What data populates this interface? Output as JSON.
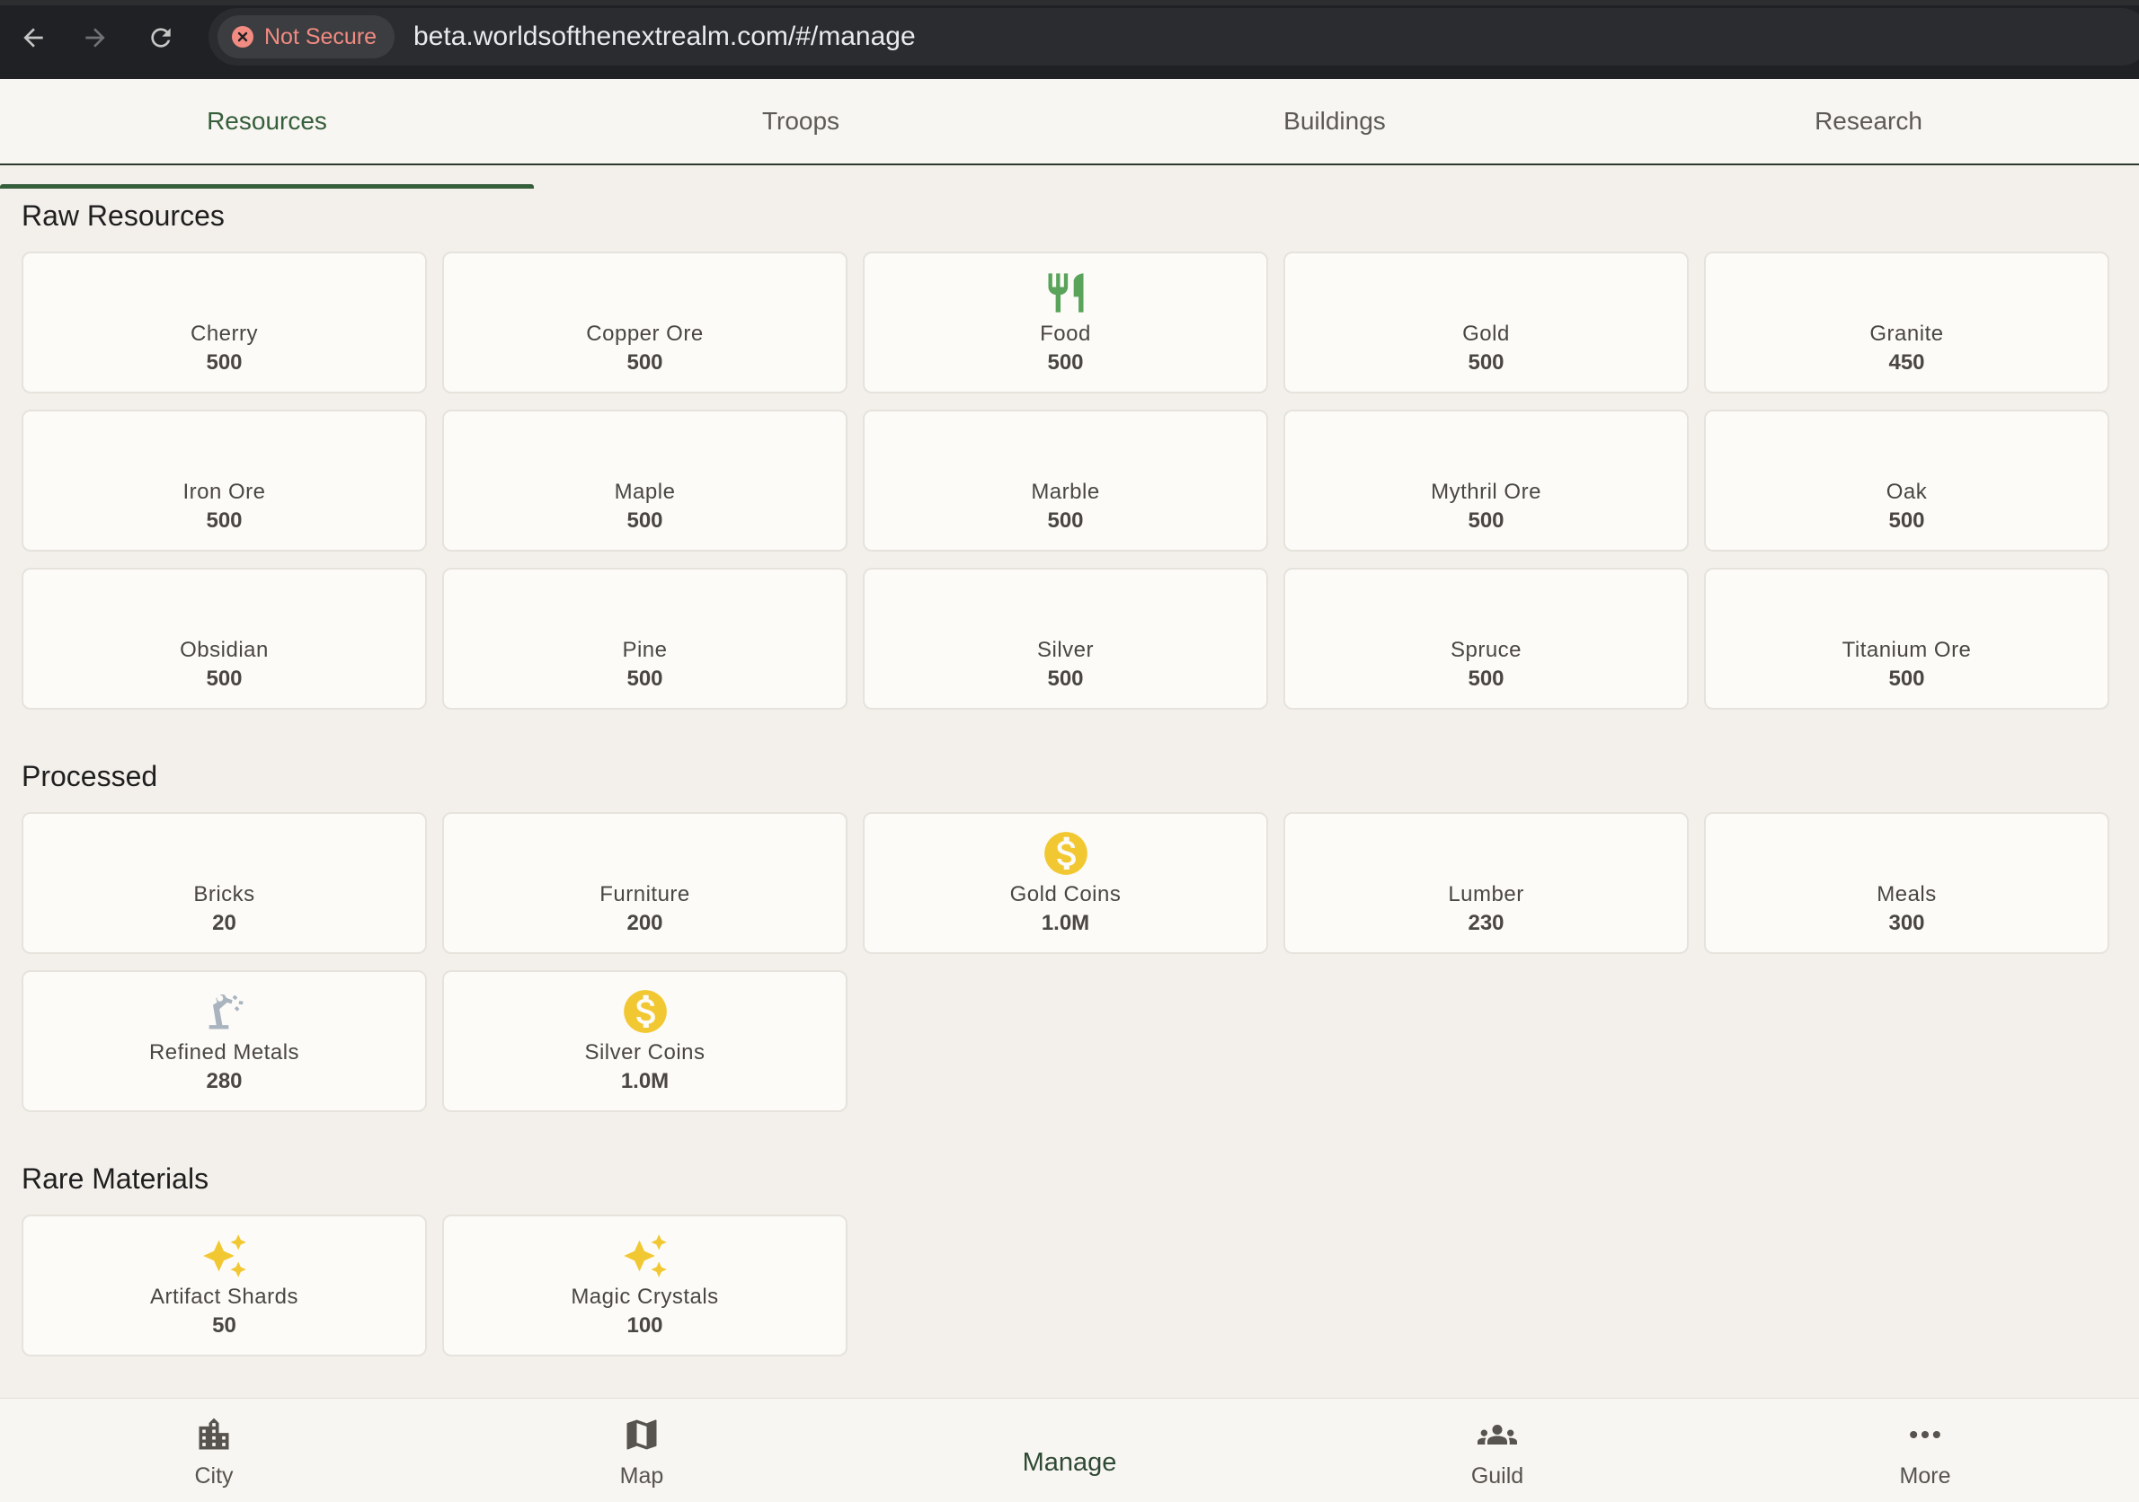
{
  "browser": {
    "security_label": "Not Secure",
    "url": "beta.worldsofthenextrealm.com/#/manage"
  },
  "tabs": [
    {
      "label": "Resources",
      "active": true
    },
    {
      "label": "Troops",
      "active": false
    },
    {
      "label": "Buildings",
      "active": false
    },
    {
      "label": "Research",
      "active": false
    }
  ],
  "sections": {
    "raw": {
      "title": "Raw Resources",
      "items": [
        {
          "name": "Cherry",
          "value": "500"
        },
        {
          "name": "Copper Ore",
          "value": "500"
        },
        {
          "name": "Food",
          "value": "500",
          "icon": "fork-knife-icon"
        },
        {
          "name": "Gold",
          "value": "500"
        },
        {
          "name": "Granite",
          "value": "450"
        },
        {
          "name": "Iron Ore",
          "value": "500"
        },
        {
          "name": "Maple",
          "value": "500"
        },
        {
          "name": "Marble",
          "value": "500"
        },
        {
          "name": "Mythril Ore",
          "value": "500"
        },
        {
          "name": "Oak",
          "value": "500"
        },
        {
          "name": "Obsidian",
          "value": "500"
        },
        {
          "name": "Pine",
          "value": "500"
        },
        {
          "name": "Silver",
          "value": "500"
        },
        {
          "name": "Spruce",
          "value": "500"
        },
        {
          "name": "Titanium Ore",
          "value": "500"
        }
      ]
    },
    "processed": {
      "title": "Processed",
      "items": [
        {
          "name": "Bricks",
          "value": "20"
        },
        {
          "name": "Furniture",
          "value": "200"
        },
        {
          "name": "Gold Coins",
          "value": "1.0M",
          "icon": "dollar-coin-icon"
        },
        {
          "name": "Lumber",
          "value": "230"
        },
        {
          "name": "Meals",
          "value": "300"
        },
        {
          "name": "Refined Metals",
          "value": "280",
          "icon": "robot-arm-icon"
        },
        {
          "name": "Silver Coins",
          "value": "1.0M",
          "icon": "dollar-coin-icon"
        }
      ]
    },
    "rare": {
      "title": "Rare Materials",
      "items": [
        {
          "name": "Artifact Shards",
          "value": "50",
          "icon": "sparkles-icon"
        },
        {
          "name": "Magic Crystals",
          "value": "100",
          "icon": "sparkles-icon"
        }
      ]
    }
  },
  "bottom_nav": [
    {
      "label": "City",
      "icon": "city-icon",
      "active": false
    },
    {
      "label": "Map",
      "icon": "map-icon",
      "active": false
    },
    {
      "label": "Manage",
      "icon": "",
      "active": true
    },
    {
      "label": "Guild",
      "icon": "group-icon",
      "active": false
    },
    {
      "label": "More",
      "icon": "more-dots-icon",
      "active": false
    }
  ],
  "colors": {
    "accent": "#355e3b",
    "food_icon": "#5aa35a",
    "coin_icon": "#f2c832",
    "sparkle_icon": "#f2c832",
    "metal_icon": "#a9b4bf"
  }
}
